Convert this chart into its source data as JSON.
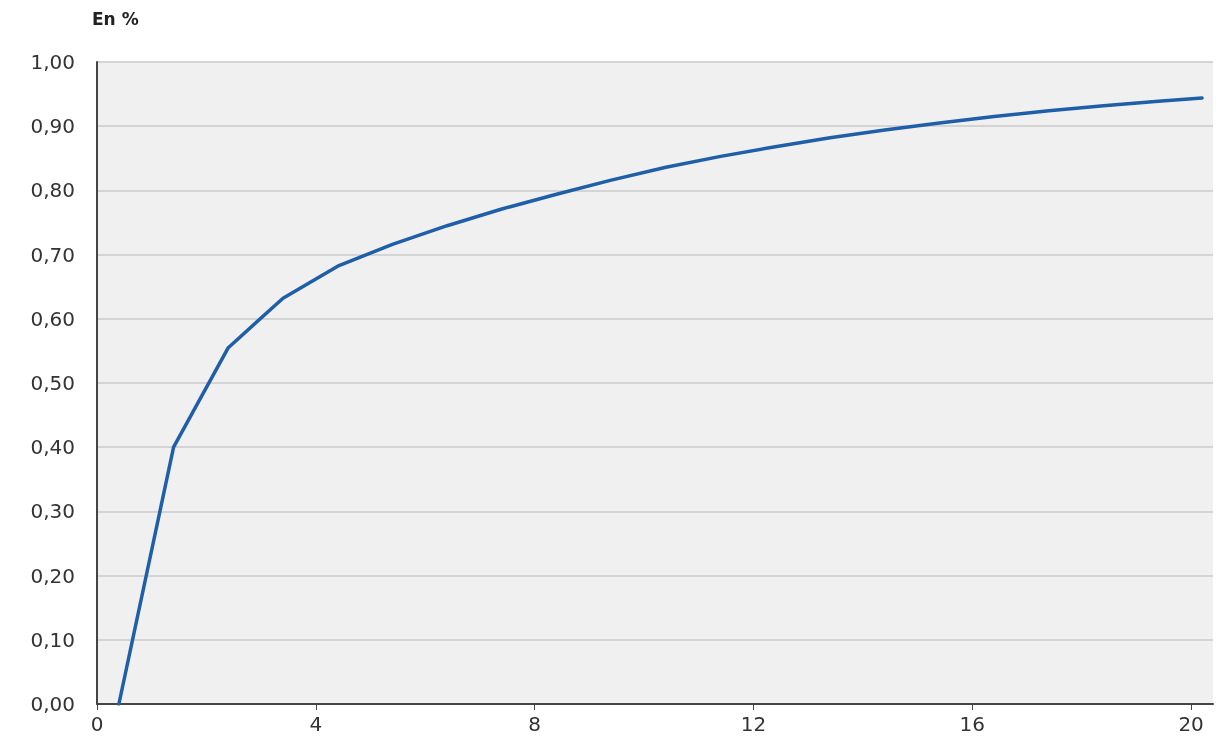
{
  "chart_data": {
    "type": "line",
    "ylabel": "En %",
    "x": [
      0.4,
      1.4,
      2.4,
      3.4,
      4.4,
      5.4,
      6.4,
      7.4,
      8.4,
      9.4,
      10.4,
      11.4,
      12.4,
      13.4,
      14.4,
      15.4,
      16.4,
      17.4,
      18.4,
      19.4,
      20.2
    ],
    "series": [
      {
        "color": "#1f5fa8",
        "values": [
          0.0,
          0.4,
          0.555,
          0.632,
          0.682,
          0.716,
          0.745,
          0.771,
          0.794,
          0.816,
          0.836,
          0.853,
          0.868,
          0.882,
          0.894,
          0.905,
          0.915,
          0.924,
          0.932,
          0.939,
          0.944
        ]
      }
    ],
    "xlim": [
      0,
      20.4
    ],
    "xticks": [
      0,
      4,
      8,
      12,
      16,
      20
    ],
    "ylim": [
      0,
      1
    ],
    "yticks": [
      {
        "value": 0,
        "label": "0,00"
      },
      {
        "value": 0.1,
        "label": "0,10"
      },
      {
        "value": 0.2,
        "label": "0,20"
      },
      {
        "value": 0.3,
        "label": "0,30"
      },
      {
        "value": 0.4,
        "label": "0,40"
      },
      {
        "value": 0.5,
        "label": "0,50"
      },
      {
        "value": 0.6,
        "label": "0,60"
      },
      {
        "value": 0.7,
        "label": "0,70"
      },
      {
        "value": 0.8,
        "label": "0,80"
      },
      {
        "value": 0.9,
        "label": "0,90"
      },
      {
        "value": 1,
        "label": "1,00"
      }
    ],
    "grid": "y",
    "marker": "none",
    "line_style": "solid"
  }
}
